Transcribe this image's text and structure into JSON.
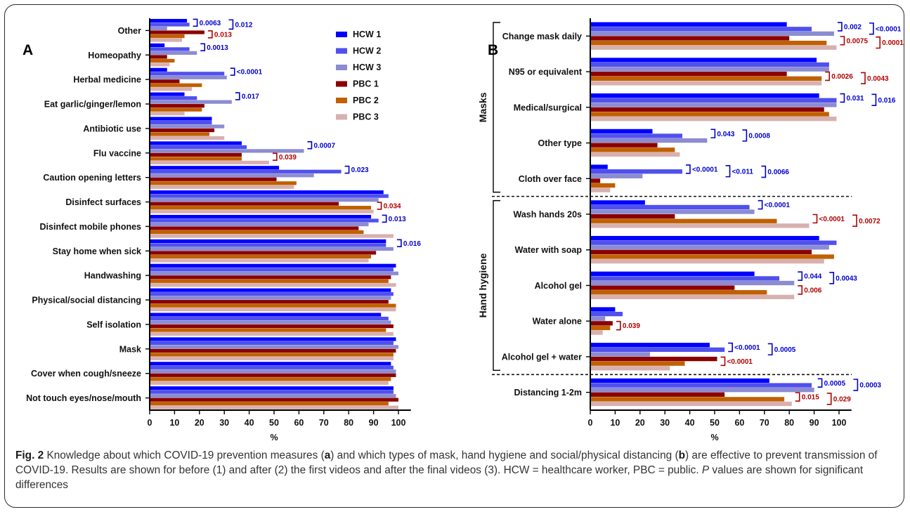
{
  "legend": {
    "entries": [
      {
        "name": "HCW 1",
        "color": "#0000ff"
      },
      {
        "name": "HCW 2",
        "color": "#5050ee"
      },
      {
        "name": "HCW 3",
        "color": "#8c8cd2"
      },
      {
        "name": "PBC 1",
        "color": "#8b0000"
      },
      {
        "name": "PBC 2",
        "color": "#c06000"
      },
      {
        "name": "PBC 3",
        "color": "#d8b0b0"
      }
    ]
  },
  "caption": {
    "figlabel": "Fig. 2",
    "t1": " Knowledge about which COVID-19 prevention measures (",
    "a": "a",
    "t2": ") and which types of mask, hand hygiene and social/physical distancing (",
    "b": "b",
    "t3": ") are effective to prevent transmission of COVID-19. Results are shown for before (1) and after (2) the first videos and after the final videos (3). HCW = healthcare worker, PBC = public. ",
    "p": "P",
    "t4": " values are shown for significant differences"
  },
  "chart_data": [
    {
      "type": "bar",
      "orientation": "horizontal",
      "panel_label": "A",
      "xlabel": "%",
      "xlim": [
        0,
        105
      ],
      "xticks": [
        0,
        10,
        20,
        30,
        40,
        50,
        60,
        70,
        80,
        90,
        100
      ],
      "categories": [
        "Other",
        "Homeopathy",
        "Herbal medicine",
        "Eat garlic/ginger/lemon",
        "Antibiotic use",
        "Flu vaccine",
        "Caution opening letters",
        "Disinfect surfaces",
        "Disinfect mobile phones",
        "Stay home when sick",
        "Handwashing",
        "Physical/social distancing",
        "Self isolation",
        "Mask",
        "Cover when cough/sneeze",
        "Not touch eyes/nose/mouth"
      ],
      "series": [
        {
          "name": "HCW 1",
          "values": [
            15,
            6,
            7,
            14,
            25,
            37,
            52,
            94,
            89,
            95,
            99,
            97,
            93,
            99,
            97,
            98
          ]
        },
        {
          "name": "HCW 2",
          "values": [
            16,
            16,
            30,
            19,
            25,
            39,
            77,
            96,
            92,
            95,
            98,
            98,
            96,
            98,
            98,
            98
          ]
        },
        {
          "name": "HCW 3",
          "values": [
            7,
            19,
            31,
            33,
            30,
            62,
            66,
            92,
            88,
            98,
            100,
            97,
            97,
            100,
            99,
            99
          ]
        },
        {
          "name": "PBC 1",
          "values": [
            22,
            7,
            12,
            22,
            26,
            37,
            51,
            76,
            84,
            91,
            97,
            96,
            98,
            99,
            99,
            100
          ]
        },
        {
          "name": "PBC 2",
          "values": [
            14,
            10,
            21,
            21,
            24,
            37,
            59,
            89,
            86,
            89,
            96,
            99,
            95,
            98,
            97,
            96
          ]
        },
        {
          "name": "PBC 3",
          "values": [
            13,
            8,
            17,
            14,
            30,
            48,
            58,
            90,
            98,
            88,
            99,
            99,
            98,
            98,
            96,
            100
          ]
        }
      ],
      "annotations": [
        {
          "category": "Other",
          "color": "#0000cc",
          "labels": [
            "0.0063",
            "0.012"
          ]
        },
        {
          "category": "Other",
          "color": "#b00000",
          "labels": [
            "0.013"
          ]
        },
        {
          "category": "Homeopathy",
          "color": "#0000cc",
          "labels": [
            "0.0013"
          ]
        },
        {
          "category": "Herbal medicine",
          "color": "#0000cc",
          "labels": [
            "<0.0001"
          ]
        },
        {
          "category": "Eat garlic/ginger/lemon",
          "color": "#0000cc",
          "labels": [
            "0.017"
          ]
        },
        {
          "category": "Flu vaccine",
          "color": "#0000cc",
          "labels": [
            "0.0007"
          ]
        },
        {
          "category": "Flu vaccine",
          "color": "#b00000",
          "labels": [
            "0.039"
          ]
        },
        {
          "category": "Caution opening letters",
          "color": "#0000cc",
          "labels": [
            "0.023"
          ]
        },
        {
          "category": "Disinfect surfaces",
          "color": "#b00000",
          "labels": [
            "0.034"
          ]
        },
        {
          "category": "Disinfect mobile phones",
          "color": "#0000cc",
          "labels": [
            "0.013"
          ]
        },
        {
          "category": "Stay home when sick",
          "color": "#0000cc",
          "labels": [
            "0.016"
          ]
        }
      ]
    },
    {
      "type": "bar",
      "orientation": "horizontal",
      "panel_label": "B",
      "xlabel": "%",
      "xlim": [
        0,
        105
      ],
      "xticks": [
        0,
        10,
        20,
        30,
        40,
        50,
        60,
        70,
        80,
        90,
        100
      ],
      "groups": [
        {
          "label": "Masks",
          "categories": [
            "Change mask daily",
            "N95 or equivalent",
            "Medical/surgical",
            "Other type",
            "Cloth over face"
          ]
        },
        {
          "label": "Hand hygiene",
          "categories": [
            "Wash hands 20s",
            "Water with soap",
            "Alcohol gel",
            "Water alone",
            "Alcohol gel + water"
          ]
        },
        {
          "label": "",
          "categories": [
            "Distancing 1-2m"
          ]
        }
      ],
      "categories": [
        "Change mask daily",
        "N95 or equivalent",
        "Medical/surgical",
        "Other type",
        "Cloth over face",
        "Wash hands 20s",
        "Water with soap",
        "Alcohol gel",
        "Water alone",
        "Alcohol gel + water",
        "Distancing 1-2m"
      ],
      "series": [
        {
          "name": "HCW 1",
          "values": [
            79,
            91,
            92,
            25,
            7,
            22,
            92,
            66,
            10,
            48,
            72
          ]
        },
        {
          "name": "HCW 2",
          "values": [
            89,
            96,
            99,
            37,
            37,
            64,
            99,
            76,
            13,
            54,
            89
          ]
        },
        {
          "name": "HCW 3",
          "values": [
            98,
            96,
            99,
            47,
            21,
            66,
            96,
            82,
            6,
            24,
            90
          ]
        },
        {
          "name": "PBC 1",
          "values": [
            80,
            79,
            94,
            27,
            4,
            34,
            89,
            58,
            9,
            51,
            54
          ]
        },
        {
          "name": "PBC 2",
          "values": [
            95,
            93,
            96,
            34,
            10,
            75,
            98,
            71,
            8,
            38,
            78
          ]
        },
        {
          "name": "PBC 3",
          "values": [
            99,
            93,
            99,
            36,
            8,
            88,
            94,
            82,
            5,
            32,
            81
          ]
        }
      ],
      "annotations": [
        {
          "category": "Change mask daily",
          "color": "#0000cc",
          "labels": [
            "0.002",
            "<0.0001"
          ]
        },
        {
          "category": "Change mask daily",
          "color": "#b00000",
          "labels": [
            "0.0075",
            "0.0001"
          ]
        },
        {
          "category": "N95 or equivalent",
          "color": "#b00000",
          "labels": [
            "0.0026",
            "0.0043"
          ]
        },
        {
          "category": "Medical/surgical",
          "color": "#0000cc",
          "labels": [
            "0.031",
            "0.016"
          ]
        },
        {
          "category": "Other type",
          "color": "#0000cc",
          "labels": [
            "0.043",
            "0.0008"
          ]
        },
        {
          "category": "Cloth over face",
          "color": "#0000cc",
          "labels": [
            "<0.0001",
            "<0.011",
            "0.0066"
          ]
        },
        {
          "category": "Wash hands 20s",
          "color": "#0000cc",
          "labels": [
            "<0.0001"
          ]
        },
        {
          "category": "Wash hands 20s",
          "color": "#b00000",
          "labels": [
            "<0.0001",
            "0.0072"
          ]
        },
        {
          "category": "Alcohol gel",
          "color": "#0000cc",
          "labels": [
            "0.044",
            "0.0043"
          ]
        },
        {
          "category": "Alcohol gel",
          "color": "#b00000",
          "labels": [
            "0.006"
          ]
        },
        {
          "category": "Water alone",
          "color": "#b00000",
          "labels": [
            "0.039"
          ]
        },
        {
          "category": "Alcohol gel + water",
          "color": "#0000cc",
          "labels": [
            "<0.0001",
            "0.0005"
          ]
        },
        {
          "category": "Alcohol gel + water",
          "color": "#b00000",
          "labels": [
            "<0.0001"
          ]
        },
        {
          "category": "Distancing 1-2m",
          "color": "#0000cc",
          "labels": [
            "0.0005",
            "0.0003"
          ]
        },
        {
          "category": "Distancing 1-2m",
          "color": "#b00000",
          "labels": [
            "0.015",
            "0.029"
          ]
        }
      ]
    }
  ]
}
